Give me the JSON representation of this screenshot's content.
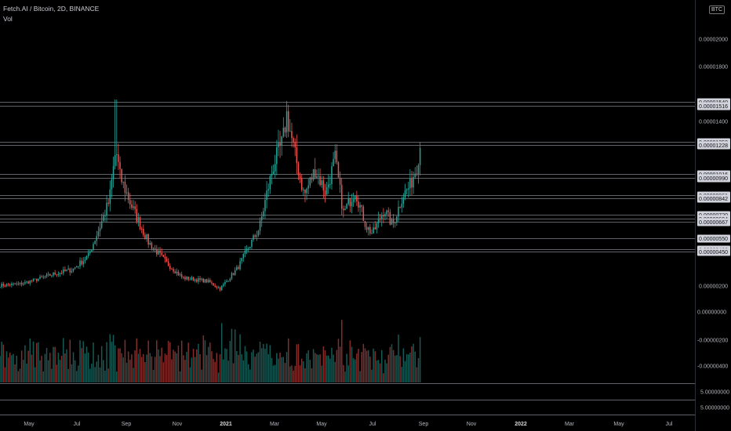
{
  "legend": {
    "symbol_line": "Fetch.AI / Bitcoin, 2D, BINANCE",
    "volume_label": "Vol"
  },
  "currency_badge": "BTC",
  "colors": {
    "background": "#000000",
    "up": "#26a69a",
    "down": "#ef5350",
    "level_line": "#9598a1",
    "label_box": "#d1d4dc"
  },
  "chart_data": {
    "type": "candlestick",
    "interval": "2D",
    "price_axis_ticks": [
      "0.00000200",
      "0.00001400",
      "0.00001800",
      "0.00002000"
    ],
    "volume_axis_ticks": [
      "-0.00000200",
      "-0.00000400",
      "0.00000000"
    ],
    "extra_axis_ticks": [
      "5.00000000",
      "5.00000000"
    ],
    "horizontal_levels": [
      "0.00001540",
      "0.00001516",
      "0.00001250",
      "0.00001228",
      "0.00001016",
      "0.00000990",
      "0.00000861",
      "0.00000842",
      "0.00000720",
      "0.00000694",
      "0.00000667",
      "0.00000550",
      "0.00000468",
      "0.00000450"
    ],
    "x_axis_labels": [
      "May",
      "Jul",
      "Sep",
      "Nov",
      "2021",
      "Mar",
      "May",
      "Jul",
      "Sep",
      "Nov",
      "2022",
      "Mar",
      "May",
      "Jul"
    ],
    "price_path": [
      [
        "2020-04-05",
        2.05e-06
      ],
      [
        "2020-04-30",
        2.15e-06
      ],
      [
        "2020-05-20",
        2.5e-06
      ],
      [
        "2020-06-10",
        2.9e-06
      ],
      [
        "2020-07-01",
        3.2e-06
      ],
      [
        "2020-07-20",
        4.2e-06
      ],
      [
        "2020-08-02",
        6.2e-06
      ],
      [
        "2020-08-14",
        8.2e-06
      ],
      [
        "2020-08-22",
        1.2e-05
      ],
      [
        "2020-08-27",
        1e-05
      ],
      [
        "2020-09-10",
        7.8e-06
      ],
      [
        "2020-09-30",
        5.2e-06
      ],
      [
        "2020-10-20",
        3.8e-06
      ],
      [
        "2020-11-10",
        2.6e-06
      ],
      [
        "2020-12-10",
        2.35e-06
      ],
      [
        "2020-12-25",
        1.8e-06
      ],
      [
        "2021-01-15",
        3.3e-06
      ],
      [
        "2021-01-28",
        4.8e-06
      ],
      [
        "2021-02-10",
        6.2e-06
      ],
      [
        "2021-02-20",
        9e-06
      ],
      [
        "2021-02-28",
        1.1e-05
      ],
      [
        "2021-03-10",
        1.25e-05
      ],
      [
        "2021-03-15",
        1.45e-05
      ],
      [
        "2021-03-25",
        1.15e-05
      ],
      [
        "2021-04-05",
        8.6e-06
      ],
      [
        "2021-04-18",
        1.05e-05
      ],
      [
        "2021-05-01",
        8.8e-06
      ],
      [
        "2021-05-12",
        1.13e-05
      ],
      [
        "2021-05-22",
        7.3e-06
      ],
      [
        "2021-06-05",
        9e-06
      ],
      [
        "2021-06-18",
        6.4e-06
      ],
      [
        "2021-06-26",
        5.8e-06
      ],
      [
        "2021-07-10",
        7.6e-06
      ],
      [
        "2021-07-20",
        6.4e-06
      ],
      [
        "2021-08-01",
        8.6e-06
      ],
      [
        "2021-08-10",
        9.3e-06
      ],
      [
        "2021-08-18",
        1.08e-05
      ],
      [
        "2021-08-22",
        1.22e-05
      ]
    ],
    "wick_highs": [
      [
        "2020-08-22",
        1.56e-05
      ],
      [
        "2021-03-15",
        1.55e-05
      ],
      [
        "2021-08-22",
        1.25e-05
      ]
    ]
  }
}
